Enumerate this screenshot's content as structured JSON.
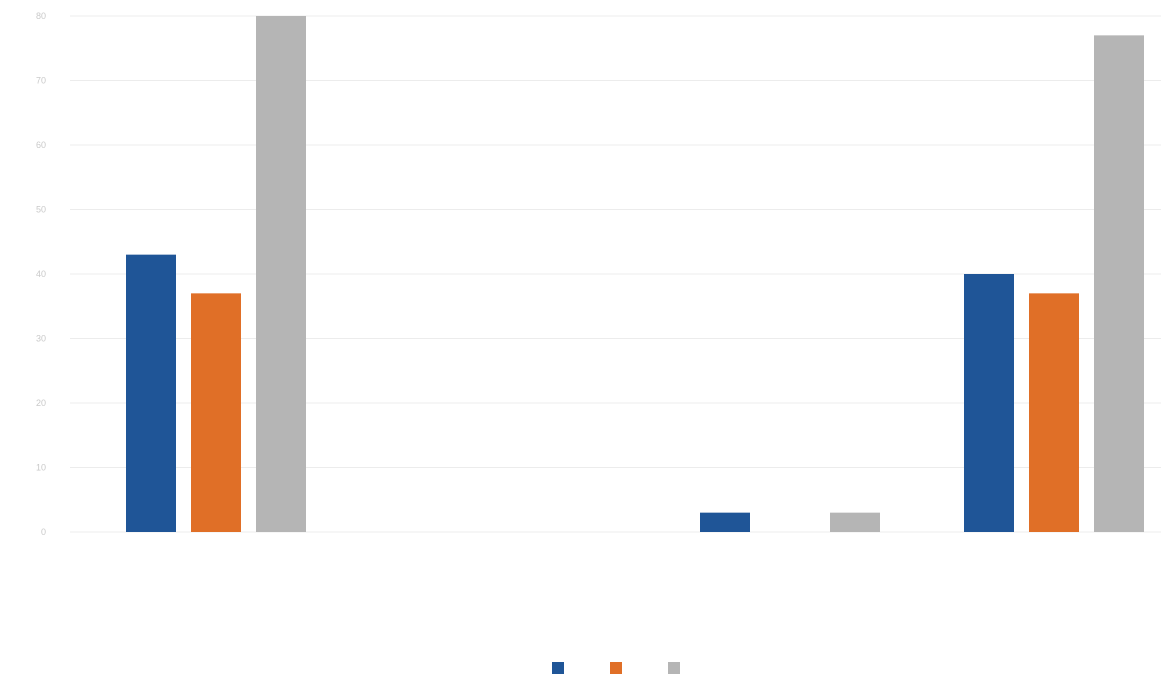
{
  "chart_data": {
    "type": "bar",
    "title": "",
    "xlabel": "",
    "ylabel": "",
    "ylim": [
      0,
      80
    ],
    "y_ticks": [
      "0",
      "10",
      "20",
      "30",
      "40",
      "50",
      "60",
      "70",
      "80"
    ],
    "grid": true,
    "legend_position": "bottom",
    "categories": [
      "",
      "",
      "",
      ""
    ],
    "series": [
      {
        "name": "",
        "color": "#1f5597",
        "values": [
          43,
          0,
          3,
          40
        ]
      },
      {
        "name": "",
        "color": "#e06f27",
        "values": [
          37,
          0,
          0,
          37
        ]
      },
      {
        "name": "",
        "color": "#b5b5b5",
        "values": [
          80,
          0,
          3,
          77
        ]
      }
    ],
    "group_labels": [
      "",
      ""
    ]
  }
}
